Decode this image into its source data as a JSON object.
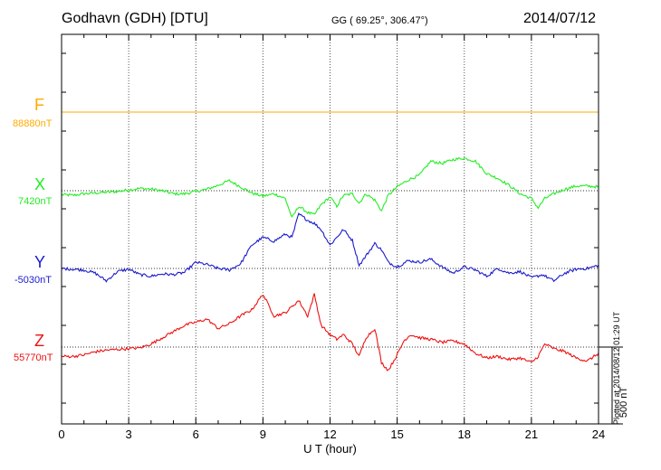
{
  "header": {
    "station": "Godhavn (GDH)  [DTU]",
    "coords": "GG ( 69.25°, 306.47°)",
    "date": "2014/07/12"
  },
  "footer_note": "Plotted at 2014/08/12 01:29 UT",
  "colors": {
    "F": "#ffaa00",
    "X": "#22ee22",
    "Y": "#1a1acc",
    "Z": "#ee1111"
  },
  "chart_data": {
    "type": "line",
    "xlabel": "U T (hour)",
    "xlim": [
      0,
      24
    ],
    "x_ticks": [
      "0",
      "3",
      "6",
      "9",
      "12",
      "15",
      "18",
      "21",
      "24"
    ],
    "scale_bar_label": "500 nT",
    "scale_bar_nT": 500,
    "series": [
      {
        "name": "F",
        "baseline": "88880nT",
        "x": [
          0,
          24
        ],
        "dev_nT": [
          0,
          0
        ]
      },
      {
        "name": "X",
        "baseline": "7420nT",
        "x": [
          0,
          0.5,
          1,
          1.5,
          2,
          2.5,
          3,
          3.5,
          4,
          4.5,
          5,
          5.5,
          6,
          6.5,
          7,
          7.5,
          8,
          8.5,
          9,
          9.5,
          10,
          10.3,
          10.6,
          11,
          11.3,
          11.6,
          12,
          12.3,
          12.6,
          13,
          13.3,
          13.6,
          14,
          14.3,
          14.6,
          15,
          15.5,
          16,
          16.5,
          17,
          17.5,
          18,
          18.5,
          19,
          19.5,
          20,
          20.5,
          21,
          21.3,
          21.6,
          22,
          22.5,
          23,
          23.5,
          24
        ],
        "dev_nT": [
          -25,
          -30,
          -20,
          -15,
          -10,
          -5,
          5,
          15,
          10,
          0,
          -20,
          -20,
          -5,
          10,
          35,
          65,
          25,
          -15,
          -35,
          -20,
          -50,
          -175,
          -100,
          -140,
          -155,
          -90,
          -40,
          -100,
          -30,
          -20,
          -80,
          -20,
          -60,
          -130,
          -30,
          25,
          70,
          100,
          190,
          175,
          200,
          210,
          190,
          110,
          80,
          35,
          -20,
          -50,
          -110,
          -50,
          -20,
          10,
          30,
          30,
          25
        ]
      },
      {
        "name": "Y",
        "baseline": "-5030nT",
        "x": [
          0,
          0.5,
          1,
          1.5,
          2,
          2.5,
          3,
          3.5,
          4,
          4.5,
          5,
          5.5,
          6,
          6.5,
          7,
          7.5,
          8,
          8.5,
          9,
          9.5,
          10,
          10.3,
          10.6,
          11,
          11.3,
          11.6,
          12,
          12.3,
          12.6,
          13,
          13.3,
          13.6,
          14,
          14.3,
          14.6,
          15,
          15.5,
          16,
          16.5,
          17,
          17.5,
          18,
          18.5,
          19,
          19.5,
          20,
          20.5,
          21,
          21.5,
          22,
          22.5,
          23,
          23.5,
          24
        ],
        "dev_nT": [
          0,
          -5,
          -10,
          -30,
          -80,
          -20,
          -5,
          -40,
          -50,
          -35,
          -40,
          -25,
          40,
          25,
          0,
          -10,
          30,
          150,
          200,
          175,
          220,
          200,
          350,
          310,
          290,
          250,
          150,
          200,
          250,
          180,
          20,
          80,
          160,
          120,
          40,
          10,
          50,
          40,
          60,
          10,
          -30,
          10,
          -10,
          -50,
          0,
          -30,
          -20,
          -60,
          -40,
          -80,
          -30,
          -5,
          0,
          20
        ]
      },
      {
        "name": "Z",
        "baseline": "55770nT",
        "x": [
          0,
          0.5,
          1,
          1.5,
          2,
          2.5,
          3,
          3.5,
          4,
          4.5,
          5,
          5.5,
          6,
          6.5,
          7,
          7.5,
          8,
          8.5,
          9,
          9.5,
          10,
          10.3,
          10.6,
          11,
          11.3,
          11.6,
          12,
          12.3,
          12.6,
          13,
          13.3,
          13.6,
          14,
          14.3,
          14.6,
          15,
          15.3,
          15.6,
          16,
          16.5,
          17,
          17.5,
          18,
          18.5,
          19,
          19.5,
          20,
          20.5,
          21,
          21.3,
          21.6,
          22,
          22.5,
          23,
          23.5,
          24
        ],
        "dev_nT": [
          -60,
          -60,
          -50,
          -30,
          -20,
          -15,
          -10,
          -5,
          20,
          60,
          100,
          140,
          160,
          180,
          120,
          150,
          200,
          240,
          340,
          200,
          220,
          260,
          300,
          200,
          340,
          140,
          80,
          50,
          80,
          20,
          -60,
          60,
          120,
          -100,
          -150,
          -50,
          40,
          80,
          60,
          50,
          30,
          40,
          20,
          -40,
          -70,
          -60,
          -80,
          -70,
          -100,
          -60,
          20,
          -10,
          -30,
          -70,
          -90,
          -40
        ]
      }
    ]
  }
}
